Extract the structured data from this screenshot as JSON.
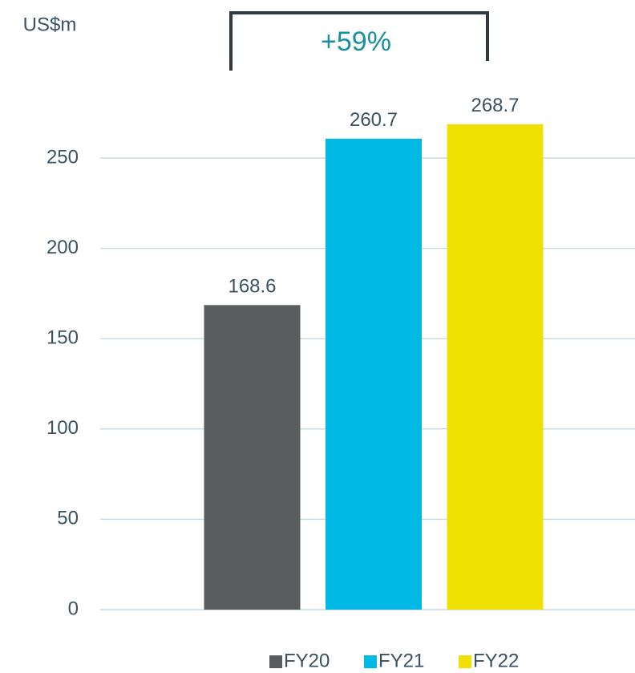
{
  "chart_data": {
    "type": "bar",
    "y_label": "US$m",
    "annotation": "+59%",
    "categories": [
      null
    ],
    "series": [
      {
        "name": "FY20",
        "color": "#595d5e",
        "values": [
          168.6
        ]
      },
      {
        "name": "FY21",
        "color": "#00b9e4",
        "values": [
          260.7
        ]
      },
      {
        "name": "FY22",
        "color": "#f0e105",
        "values": [
          268.7
        ]
      }
    ],
    "ylim": [
      0,
      300
    ],
    "yticks": [
      0,
      50,
      100,
      150,
      200,
      250
    ],
    "grid": true,
    "legend": "bottom"
  }
}
